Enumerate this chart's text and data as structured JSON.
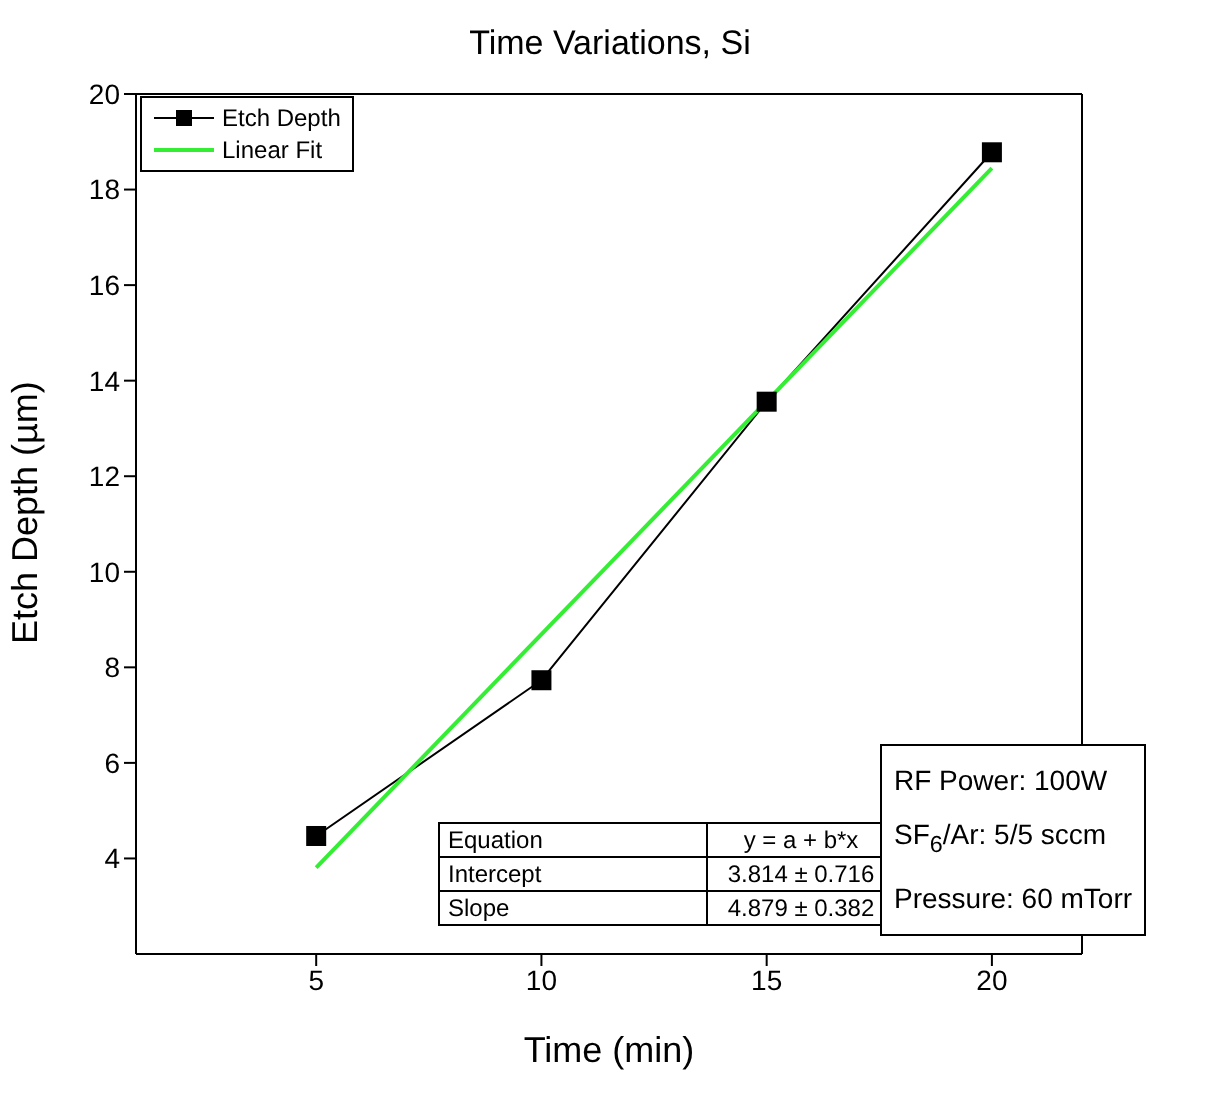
{
  "chart_data": {
    "type": "line",
    "title": "Time Variations, Si",
    "xlabel": "Time (min)",
    "ylabel": "Etch Depth (µm)",
    "xlim": [
      1,
      22
    ],
    "xticks": [
      5,
      10,
      15,
      20
    ],
    "ylim": [
      2,
      20
    ],
    "yticks": [
      4,
      6,
      8,
      10,
      12,
      14,
      16,
      18,
      20
    ],
    "series": [
      {
        "name": "Etch Depth",
        "color": "#000000",
        "marker": "square",
        "x": [
          5,
          10,
          15,
          20
        ],
        "values": [
          4.47,
          7.73,
          13.56,
          18.78
        ]
      },
      {
        "name": "Linear Fit",
        "color": "#33ee33",
        "marker": "none",
        "x": [
          5,
          20
        ],
        "values": [
          3.81,
          18.45
        ]
      }
    ],
    "legend": "top left",
    "annotations": [
      "Equation",
      "y = a + b*x",
      "Intercept",
      "3.814 ± 0.716",
      "Slope",
      "4.879 ± 0.382",
      "RF Power: 100W",
      "SF$_{6}$/Ar: 5/5 sccm",
      "Pressure: 60 mTorr"
    ]
  }
}
